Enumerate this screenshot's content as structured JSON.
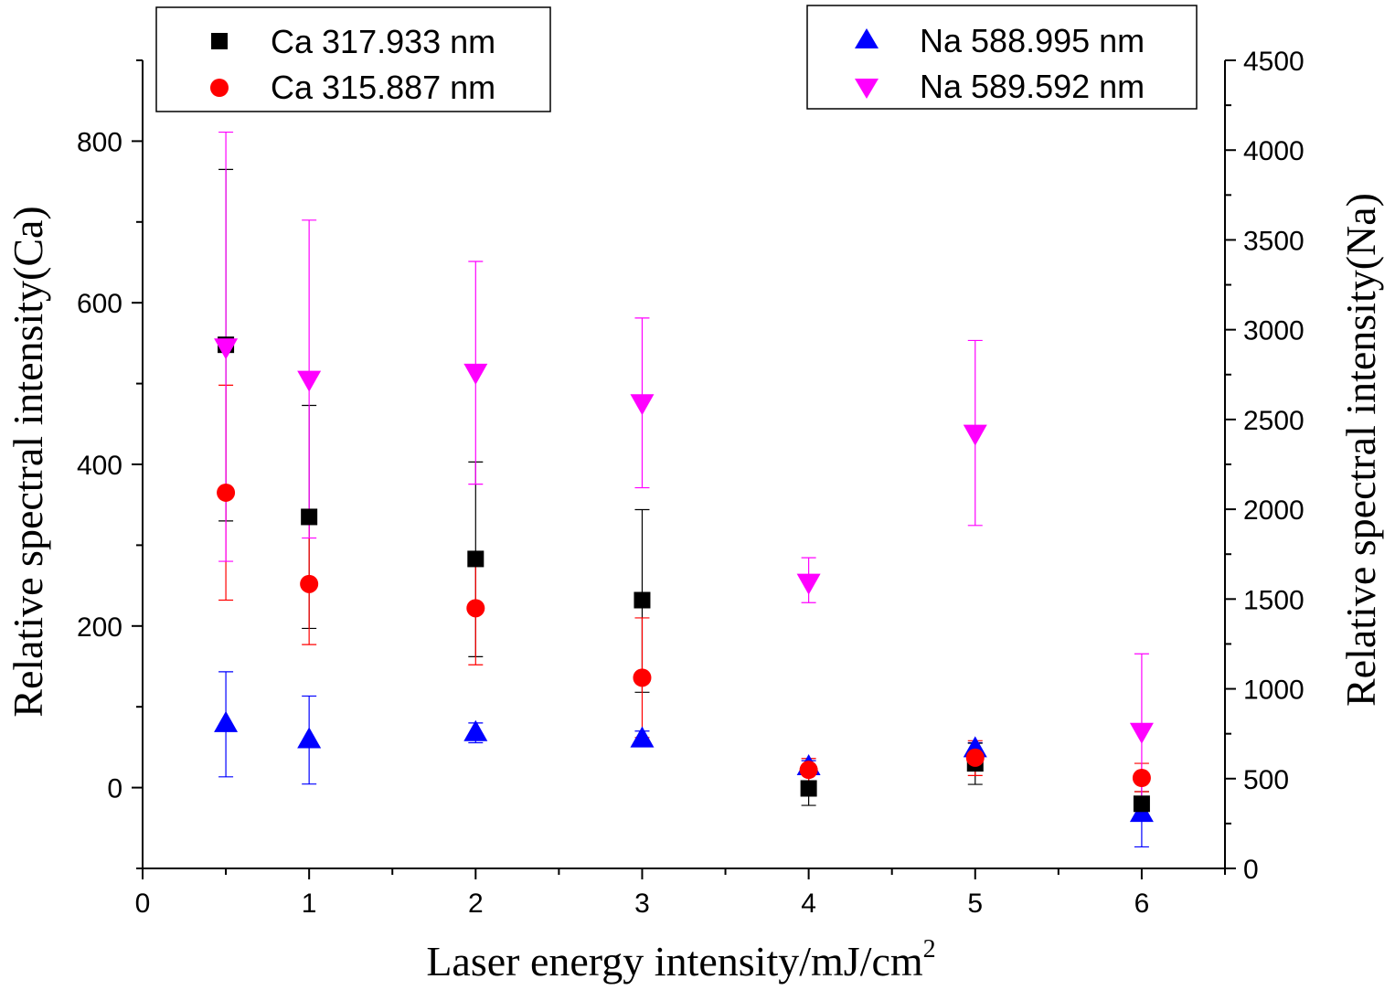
{
  "chart_data": {
    "type": "scatter",
    "x_axis": {
      "label": "Laser energy intensity/mJ/cm",
      "label_superscript": "2",
      "range": [
        0,
        6.5
      ],
      "ticks": [
        0,
        1,
        2,
        3,
        4,
        5,
        6
      ],
      "tick_labels": [
        "0",
        "1",
        "2",
        "3",
        "4",
        "5",
        "6"
      ]
    },
    "y_axis_left": {
      "label": "Relative spectral intensity(Ca)",
      "range": [
        -100,
        900
      ],
      "ticks": [
        0,
        200,
        400,
        600,
        800
      ],
      "tick_labels": [
        "0",
        "200",
        "400",
        "600",
        "800"
      ]
    },
    "y_axis_right": {
      "label": "Relative spectral intensity(Na)",
      "range": [
        0,
        4500
      ],
      "ticks": [
        0,
        500,
        1000,
        1500,
        2000,
        2500,
        3000,
        3500,
        4000,
        4500
      ],
      "tick_labels": [
        "0",
        "500",
        "1000",
        "1500",
        "2000",
        "2500",
        "3000",
        "3500",
        "4000",
        "4500"
      ]
    },
    "series": [
      {
        "name": "Ca  317.933 nm",
        "axis": "left",
        "marker": "square",
        "color": "#000000",
        "points": [
          {
            "x": 0.5,
            "y": 548,
            "lo": 330,
            "hi": 765
          },
          {
            "x": 1,
            "y": 335,
            "lo": 197,
            "hi": 473
          },
          {
            "x": 2,
            "y": 283,
            "lo": 162,
            "hi": 403
          },
          {
            "x": 3,
            "y": 232,
            "lo": 118,
            "hi": 344
          },
          {
            "x": 4,
            "y": -1,
            "lo": -22,
            "hi": 20
          },
          {
            "x": 5,
            "y": 30,
            "lo": 4,
            "hi": 55
          },
          {
            "x": 6,
            "y": -20,
            "lo": -35,
            "hi": -5
          }
        ]
      },
      {
        "name": "Ca  315.887 nm",
        "axis": "left",
        "marker": "circle",
        "color": "#ff0000",
        "points": [
          {
            "x": 0.5,
            "y": 365,
            "lo": 232,
            "hi": 498
          },
          {
            "x": 1,
            "y": 252,
            "lo": 177,
            "hi": 327
          },
          {
            "x": 2,
            "y": 222,
            "lo": 152,
            "hi": 292
          },
          {
            "x": 3,
            "y": 136,
            "lo": 62,
            "hi": 210
          },
          {
            "x": 4,
            "y": 22,
            "lo": 8,
            "hi": 36
          },
          {
            "x": 5,
            "y": 37,
            "lo": 15,
            "hi": 58
          },
          {
            "x": 6,
            "y": 12,
            "lo": -5,
            "hi": 30
          }
        ]
      },
      {
        "name": "Na  588.995 nm",
        "axis": "right",
        "marker": "triangle-up",
        "color": "#0000ff",
        "points": [
          {
            "x": 0.5,
            "y": 810,
            "lo": 510,
            "hi": 1095
          },
          {
            "x": 1,
            "y": 720,
            "lo": 470,
            "hi": 960
          },
          {
            "x": 2,
            "y": 760,
            "lo": 700,
            "hi": 810
          },
          {
            "x": 3,
            "y": 725,
            "lo": 700,
            "hi": 765
          },
          {
            "x": 4,
            "y": 570,
            "lo": 545,
            "hi": 600
          },
          {
            "x": 5,
            "y": 670,
            "lo": 640,
            "hi": 700
          },
          {
            "x": 6,
            "y": 310,
            "lo": 120,
            "hi": 500
          }
        ]
      },
      {
        "name": "Na  589.592 nm",
        "axis": "right",
        "marker": "triangle-down",
        "color": "#ff00ff",
        "points": [
          {
            "x": 0.5,
            "y": 2900,
            "lo": 1710,
            "hi": 4100
          },
          {
            "x": 1,
            "y": 2720,
            "lo": 1840,
            "hi": 3610
          },
          {
            "x": 2,
            "y": 2760,
            "lo": 2140,
            "hi": 3380
          },
          {
            "x": 3,
            "y": 2590,
            "lo": 2120,
            "hi": 3065
          },
          {
            "x": 4,
            "y": 1590,
            "lo": 1480,
            "hi": 1730
          },
          {
            "x": 5,
            "y": 2420,
            "lo": 1910,
            "hi": 2940
          },
          {
            "x": 6,
            "y": 760,
            "lo": 330,
            "hi": 1195
          }
        ]
      }
    ],
    "legend_left": [
      "Ca  317.933 nm",
      "Ca  315.887 nm"
    ],
    "legend_right": [
      "Na  588.995 nm",
      "Na  589.592 nm"
    ]
  }
}
